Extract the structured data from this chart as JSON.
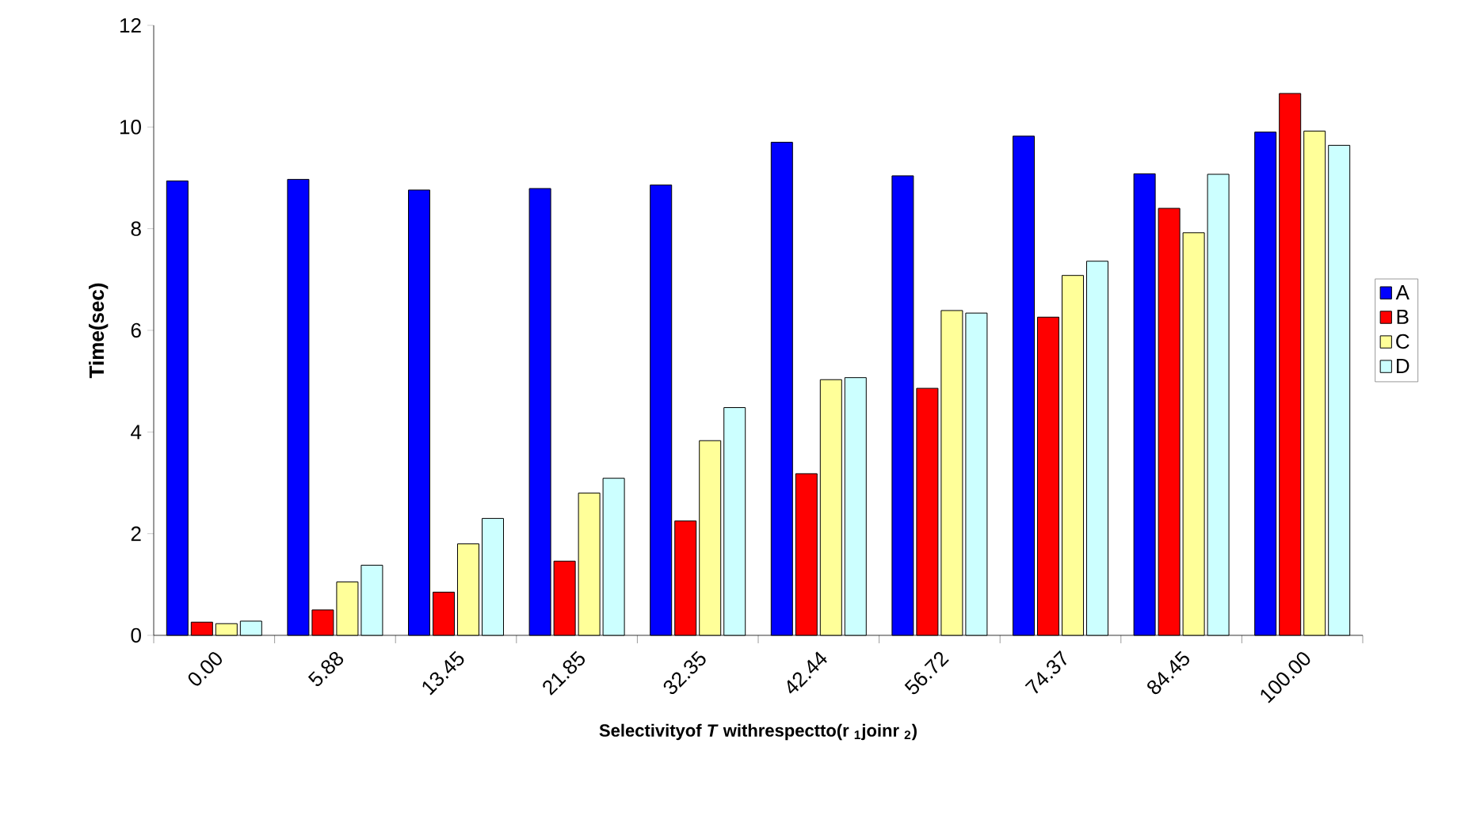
{
  "chart_data": {
    "type": "bar",
    "xlabel": "Selectivityof *T* withrespectto(r $_{1}$joinr $_{2}$)",
    "ylabel": "Time(sec)",
    "categories": [
      "0.00",
      "5.88",
      "13.45",
      "21.85",
      "32.35",
      "42.44",
      "56.72",
      "74.37",
      "84.45",
      "100.00"
    ],
    "series": [
      {
        "name": "A",
        "color": "#0000ff",
        "values": [
          8.94,
          8.97,
          8.76,
          8.79,
          8.86,
          9.7,
          9.04,
          9.82,
          9.08,
          9.9
        ]
      },
      {
        "name": "B",
        "color": "#ff0000",
        "values": [
          0.26,
          0.5,
          0.85,
          1.46,
          2.25,
          3.18,
          4.86,
          6.26,
          8.4,
          10.66
        ]
      },
      {
        "name": "C",
        "color": "#ffff99",
        "values": [
          0.23,
          1.05,
          1.8,
          2.8,
          3.83,
          5.03,
          6.39,
          7.08,
          7.92,
          9.92
        ]
      },
      {
        "name": "D",
        "color": "#ccffff",
        "values": [
          0.28,
          1.38,
          2.3,
          3.09,
          4.48,
          5.07,
          6.34,
          7.36,
          9.07,
          9.64
        ]
      }
    ],
    "ylim": [
      0,
      12
    ],
    "yticks": [
      0,
      2,
      4,
      6,
      8,
      10,
      12
    ],
    "grid": false,
    "legend": "right"
  }
}
